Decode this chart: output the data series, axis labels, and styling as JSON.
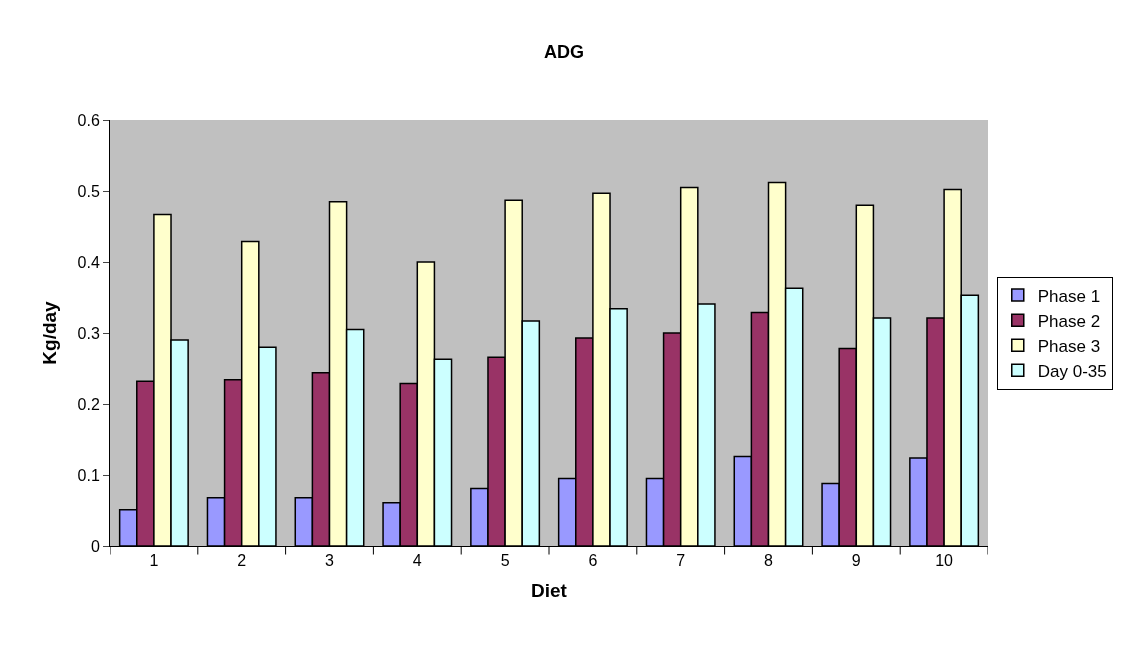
{
  "chart_data": {
    "type": "bar",
    "title": "ADG",
    "xlabel": "Diet",
    "ylabel": "Kg/day",
    "categories": [
      "1",
      "2",
      "3",
      "4",
      "5",
      "6",
      "7",
      "8",
      "9",
      "10"
    ],
    "series": [
      {
        "name": "Phase 1",
        "color": "#9999ff",
        "values": [
          0.051,
          0.068,
          0.068,
          0.061,
          0.081,
          0.095,
          0.095,
          0.126,
          0.088,
          0.124
        ]
      },
      {
        "name": "Phase 2",
        "color": "#993366",
        "values": [
          0.232,
          0.234,
          0.244,
          0.229,
          0.266,
          0.293,
          0.3,
          0.329,
          0.278,
          0.321
        ]
      },
      {
        "name": "Phase 3",
        "color": "#ffffcc",
        "values": [
          0.467,
          0.429,
          0.485,
          0.4,
          0.487,
          0.497,
          0.505,
          0.512,
          0.48,
          0.502
        ]
      },
      {
        "name": "Day 0-35",
        "color": "#ccffff",
        "values": [
          0.29,
          0.28,
          0.305,
          0.263,
          0.317,
          0.334,
          0.341,
          0.363,
          0.321,
          0.353
        ]
      }
    ],
    "ylim": [
      0,
      0.6
    ],
    "yticks": [
      0,
      0.1,
      0.2,
      0.3,
      0.4,
      0.5,
      0.6
    ],
    "grid": false,
    "legend": "right"
  }
}
